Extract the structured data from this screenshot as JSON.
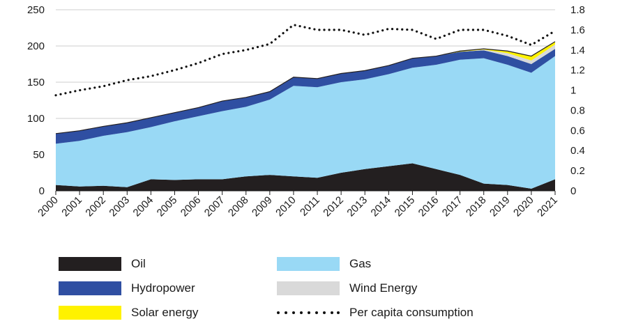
{
  "chart_data": {
    "type": "area",
    "stacked": true,
    "x": [
      "2000",
      "2001",
      "2002",
      "2003",
      "2004",
      "2005",
      "2006",
      "2007",
      "2008",
      "2009",
      "2010",
      "2011",
      "2012",
      "2013",
      "2014",
      "2015",
      "2016",
      "2017",
      "2018",
      "2019",
      "2020",
      "2021"
    ],
    "ylim_left": [
      0,
      250
    ],
    "yticks_left": [
      "0",
      "50",
      "100",
      "150",
      "200",
      "250"
    ],
    "ylim_right": [
      0,
      1.8
    ],
    "yticks_right": [
      "0",
      "0.2",
      "0.4",
      "0.6",
      "0.8",
      "1",
      "1.2",
      "1.4",
      "1.6",
      "1.8"
    ],
    "grid": "horizontal",
    "legend_placement": "bottom",
    "series": [
      {
        "name": "Oil",
        "color": "#231f20",
        "values": [
          8,
          6,
          7,
          5,
          16,
          15,
          16,
          16,
          20,
          22,
          20,
          18,
          25,
          30,
          34,
          38,
          30,
          22,
          10,
          8,
          3,
          16
        ]
      },
      {
        "name": "Gas",
        "color": "#99d9f5",
        "values": [
          57,
          63,
          69,
          76,
          72,
          81,
          87,
          94,
          96,
          104,
          125,
          125,
          125,
          124,
          127,
          132,
          144,
          159,
          173,
          166,
          160,
          170
        ]
      },
      {
        "name": "Hydropower",
        "color": "#2f4fa2",
        "values": [
          14,
          14,
          13,
          13,
          13,
          12,
          12,
          14,
          13,
          11,
          12,
          12,
          12,
          12,
          12,
          13,
          12,
          11,
          11,
          12,
          12,
          10
        ]
      },
      {
        "name": "Wind Energy",
        "color": "#d9d9d9",
        "values": [
          0,
          0,
          0,
          0,
          0,
          0,
          0,
          0,
          0,
          0,
          0,
          0,
          0,
          0,
          0,
          0,
          0,
          0,
          1,
          4,
          5,
          6
        ]
      },
      {
        "name": "Solar energy",
        "color": "#fff200",
        "values": [
          0,
          0,
          0,
          0,
          0,
          0,
          0,
          0,
          0,
          0,
          0,
          0,
          0,
          0,
          0,
          0,
          0,
          1,
          1,
          3,
          6,
          4
        ]
      },
      {
        "name": "Per capita consumption",
        "color": "#111111",
        "style": "dotted",
        "axis": "right",
        "values": [
          0.95,
          1.0,
          1.04,
          1.1,
          1.14,
          1.2,
          1.27,
          1.36,
          1.4,
          1.46,
          1.65,
          1.6,
          1.6,
          1.55,
          1.61,
          1.6,
          1.51,
          1.6,
          1.6,
          1.54,
          1.45,
          1.59
        ]
      }
    ]
  },
  "legend": [
    {
      "label": "Oil",
      "color": "#231f20",
      "style": "swatch"
    },
    {
      "label": "Gas",
      "color": "#99d9f5",
      "style": "swatch"
    },
    {
      "label": "Hydropower",
      "color": "#2f4fa2",
      "style": "swatch"
    },
    {
      "label": "Wind Energy",
      "color": "#d9d9d9",
      "style": "swatch"
    },
    {
      "label": "Solar energy",
      "color": "#fff200",
      "style": "swatch"
    },
    {
      "label": "Per capita consumption",
      "color": "#111111",
      "style": "dotted"
    }
  ]
}
